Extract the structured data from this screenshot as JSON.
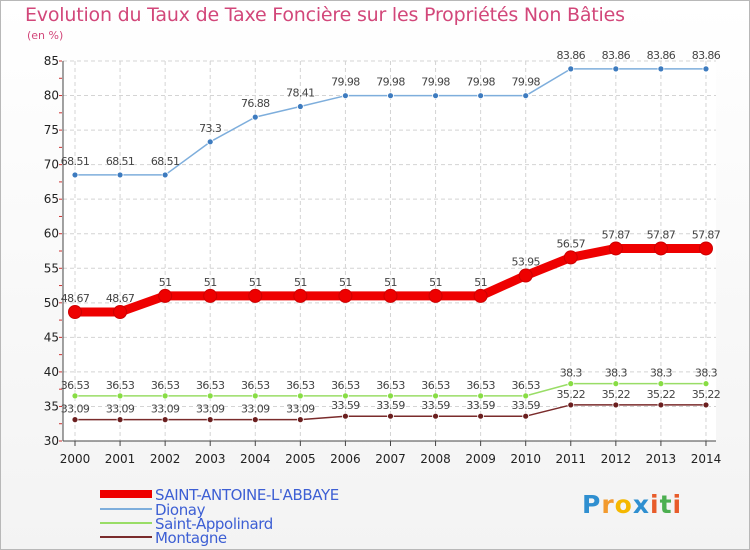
{
  "title": "Evolution du Taux de Taxe Foncière sur les Propriétés Non Bâties",
  "subtitle": "(en %)",
  "logo_text": "Proxiti",
  "chart_data": {
    "type": "line",
    "title": "Evolution du Taux de Taxe Foncière sur les Propriétés Non Bâties",
    "ylabel": "(en %)",
    "xlabel": "",
    "ylim": [
      30,
      85
    ],
    "yticks": [
      30,
      35,
      40,
      45,
      50,
      55,
      60,
      65,
      70,
      75,
      80,
      85
    ],
    "grid": true,
    "legend": "bottom-left",
    "x": [
      "2000",
      "2001",
      "2002",
      "2003",
      "2004",
      "2005",
      "2006",
      "2007",
      "2008",
      "2009",
      "2010",
      "2011",
      "2012",
      "2013",
      "2014"
    ],
    "series": [
      {
        "name": "SAINT-ANTOINE-L'ABBAYE",
        "color": "#ee0000",
        "values": [
          48.67,
          48.67,
          51,
          51,
          51,
          51,
          51,
          51,
          51,
          51,
          53.95,
          56.57,
          57.87,
          57.87,
          57.87
        ],
        "labels": [
          "48.67",
          "48.67",
          "51",
          "51",
          "51",
          "51",
          "51",
          "51",
          "51",
          "51",
          "53.95",
          "56.57",
          "57.87",
          "57.87",
          "57.87"
        ]
      },
      {
        "name": "Dionay",
        "color": "#7eaedc",
        "values": [
          68.51,
          68.51,
          68.51,
          73.3,
          76.88,
          78.41,
          79.98,
          79.98,
          79.98,
          79.98,
          79.98,
          83.86,
          83.86,
          83.86,
          83.86
        ],
        "labels": [
          "68.51",
          "68.51",
          "68.51",
          "73.3",
          "76.88",
          "78.41",
          "79.98",
          "79.98",
          "79.98",
          "79.98",
          "79.98",
          "83.86",
          "83.86",
          "83.86",
          "83.86"
        ]
      },
      {
        "name": "Saint-Appolinard",
        "color": "#99dd66",
        "values": [
          36.53,
          36.53,
          36.53,
          36.53,
          36.53,
          36.53,
          36.53,
          36.53,
          36.53,
          36.53,
          36.53,
          38.3,
          38.3,
          38.3,
          38.3
        ],
        "labels": [
          "36.53",
          "36.53",
          "36.53",
          "36.53",
          "36.53",
          "36.53",
          "36.53",
          "36.53",
          "36.53",
          "36.53",
          "36.53",
          "38.3",
          "38.3",
          "38.3",
          "38.3"
        ]
      },
      {
        "name": "Montagne",
        "color": "#7a2b2b",
        "values": [
          33.09,
          33.09,
          33.09,
          33.09,
          33.09,
          33.09,
          33.59,
          33.59,
          33.59,
          33.59,
          33.59,
          35.22,
          35.22,
          35.22,
          35.22
        ],
        "labels": [
          "33.09",
          "33.09",
          "33.09",
          "33.09",
          "33.09",
          "33.09",
          "33.59",
          "33.59",
          "33.59",
          "33.59",
          "33.59",
          "35.22",
          "35.22",
          "35.22",
          "35.22"
        ]
      }
    ]
  }
}
